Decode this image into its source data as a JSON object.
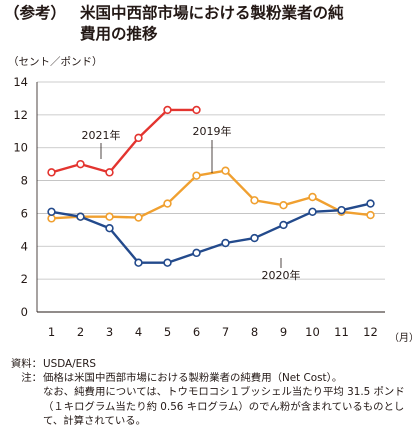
{
  "title": {
    "prefix": "（参考）",
    "line1": "米国中西部市場における製粉業者の純",
    "line2": "費用の推移"
  },
  "chart_data": {
    "type": "line",
    "unit_label": "（セント／ポンド）",
    "x_unit": "（月）",
    "categories": [
      "1",
      "2",
      "3",
      "4",
      "5",
      "6",
      "7",
      "8",
      "9",
      "10",
      "11",
      "12"
    ],
    "yticks": [
      "0",
      "2",
      "4",
      "6",
      "8",
      "10",
      "12",
      "14"
    ],
    "ylim": [
      0,
      14
    ],
    "grid": true,
    "series": [
      {
        "name": "2021年",
        "color": "#e3342f",
        "values": [
          8.5,
          9.0,
          8.5,
          10.6,
          12.3,
          12.3,
          null,
          null,
          null,
          null,
          null,
          null
        ]
      },
      {
        "name": "2019年",
        "color": "#f0a030",
        "values": [
          5.7,
          5.8,
          5.8,
          5.75,
          6.6,
          8.3,
          8.6,
          6.8,
          6.5,
          7.0,
          6.1,
          5.9
        ]
      },
      {
        "name": "2020年",
        "color": "#234a8c",
        "values": [
          6.1,
          5.8,
          5.1,
          3.0,
          3.0,
          3.6,
          4.2,
          4.5,
          5.3,
          6.1,
          6.2,
          6.6
        ]
      }
    ]
  },
  "notes": {
    "source_key": "資料：",
    "source_text": "USDA/ERS",
    "note_key": "注：",
    "note_line1": "価格は米国中西部市場における製粉業者の純費用（Net Cost）。",
    "note_line2": "なお、純費用については、トウモロコシ１ブッシェル当たり平均 31.5 ポンド（１キログラム当たり約 0.56 キログラム）のでん粉が含まれているものとして、計算されている。"
  }
}
